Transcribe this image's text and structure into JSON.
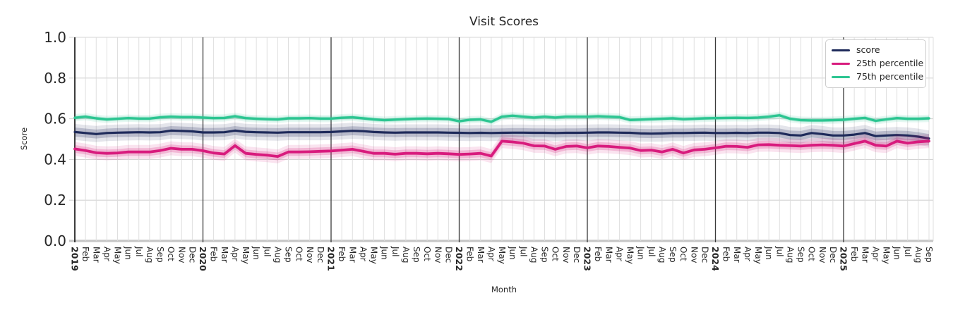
{
  "chart_data": {
    "type": "line",
    "title": "Visit Scores",
    "xlabel": "Month",
    "ylabel": "Score",
    "ylim": [
      0.0,
      1.0
    ],
    "yticks": [
      "0.0",
      "0.2",
      "0.4",
      "0.6",
      "0.8",
      "1.0"
    ],
    "grid": "on",
    "legend_position": "upper right",
    "x_tick_labels": [
      "2019",
      "Feb",
      "Mar",
      "Apr",
      "May",
      "Jun",
      "Jul",
      "Aug",
      "Sep",
      "Oct",
      "Nov",
      "Dec",
      "2020",
      "Feb",
      "Mar",
      "Apr",
      "May",
      "Jun",
      "Jul",
      "Aug",
      "Sep",
      "Oct",
      "Nov",
      "Dec",
      "2021",
      "Feb",
      "Mar",
      "Apr",
      "May",
      "Jun",
      "Jul",
      "Aug",
      "Sep",
      "Oct",
      "Nov",
      "Dec",
      "2022",
      "Feb",
      "Mar",
      "Apr",
      "May",
      "Jun",
      "Jul",
      "Aug",
      "Sep",
      "Oct",
      "Nov",
      "Dec",
      "2023",
      "Feb",
      "Mar",
      "Apr",
      "May",
      "Jun",
      "Jul",
      "Aug",
      "Sep",
      "Oct",
      "Nov",
      "Dec",
      "2024",
      "Feb",
      "Mar",
      "Apr",
      "May",
      "Jun",
      "Jul",
      "Aug",
      "Sep",
      "Oct",
      "Nov",
      "Dec",
      "2025",
      "Feb",
      "Mar",
      "Apr",
      "May",
      "Jun",
      "Jul",
      "Aug",
      "Sep"
    ],
    "series": [
      {
        "name": "score",
        "color": "#1e2a5a",
        "band_halfwidth": 0.022,
        "values": [
          0.535,
          0.53,
          0.525,
          0.53,
          0.532,
          0.533,
          0.534,
          0.533,
          0.534,
          0.542,
          0.54,
          0.538,
          0.533,
          0.533,
          0.534,
          0.542,
          0.536,
          0.534,
          0.533,
          0.532,
          0.534,
          0.534,
          0.534,
          0.534,
          0.535,
          0.538,
          0.541,
          0.539,
          0.535,
          0.533,
          0.532,
          0.533,
          0.533,
          0.533,
          0.533,
          0.532,
          0.531,
          0.53,
          0.531,
          0.53,
          0.531,
          0.532,
          0.532,
          0.531,
          0.531,
          0.53,
          0.531,
          0.531,
          0.532,
          0.533,
          0.533,
          0.532,
          0.531,
          0.528,
          0.527,
          0.528,
          0.53,
          0.53,
          0.531,
          0.532,
          0.53,
          0.53,
          0.531,
          0.53,
          0.532,
          0.532,
          0.53,
          0.52,
          0.518,
          0.53,
          0.525,
          0.518,
          0.518,
          0.522,
          0.53,
          0.515,
          0.518,
          0.52,
          0.518,
          0.512,
          0.503
        ]
      },
      {
        "name": "25th percentile",
        "color": "#d81b7d",
        "band_halfwidth": 0.019,
        "values": [
          0.452,
          0.444,
          0.433,
          0.43,
          0.432,
          0.437,
          0.437,
          0.437,
          0.444,
          0.455,
          0.45,
          0.45,
          0.443,
          0.432,
          0.427,
          0.468,
          0.43,
          0.425,
          0.421,
          0.415,
          0.437,
          0.437,
          0.438,
          0.44,
          0.442,
          0.446,
          0.45,
          0.44,
          0.43,
          0.43,
          0.426,
          0.43,
          0.43,
          0.428,
          0.43,
          0.428,
          0.425,
          0.427,
          0.43,
          0.417,
          0.49,
          0.486,
          0.48,
          0.467,
          0.466,
          0.45,
          0.464,
          0.466,
          0.457,
          0.466,
          0.464,
          0.46,
          0.456,
          0.444,
          0.446,
          0.437,
          0.45,
          0.432,
          0.447,
          0.45,
          0.457,
          0.465,
          0.464,
          0.46,
          0.472,
          0.473,
          0.47,
          0.468,
          0.466,
          0.47,
          0.472,
          0.47,
          0.466,
          0.478,
          0.49,
          0.47,
          0.466,
          0.49,
          0.48,
          0.487,
          0.49
        ]
      },
      {
        "name": "75th percentile",
        "color": "#2cc591",
        "band_halfwidth": 0.01,
        "values": [
          0.605,
          0.61,
          0.602,
          0.597,
          0.6,
          0.603,
          0.601,
          0.601,
          0.607,
          0.61,
          0.608,
          0.608,
          0.606,
          0.603,
          0.604,
          0.612,
          0.603,
          0.6,
          0.598,
          0.597,
          0.602,
          0.602,
          0.603,
          0.601,
          0.601,
          0.605,
          0.607,
          0.602,
          0.597,
          0.593,
          0.596,
          0.598,
          0.6,
          0.601,
          0.6,
          0.599,
          0.588,
          0.595,
          0.597,
          0.585,
          0.61,
          0.615,
          0.61,
          0.606,
          0.61,
          0.606,
          0.61,
          0.61,
          0.61,
          0.612,
          0.61,
          0.608,
          0.594,
          0.596,
          0.598,
          0.6,
          0.602,
          0.598,
          0.6,
          0.602,
          0.603,
          0.604,
          0.605,
          0.604,
          0.606,
          0.61,
          0.617,
          0.6,
          0.593,
          0.592,
          0.592,
          0.593,
          0.595,
          0.6,
          0.604,
          0.59,
          0.597,
          0.603,
          0.6,
          0.6,
          0.602
        ]
      }
    ]
  }
}
